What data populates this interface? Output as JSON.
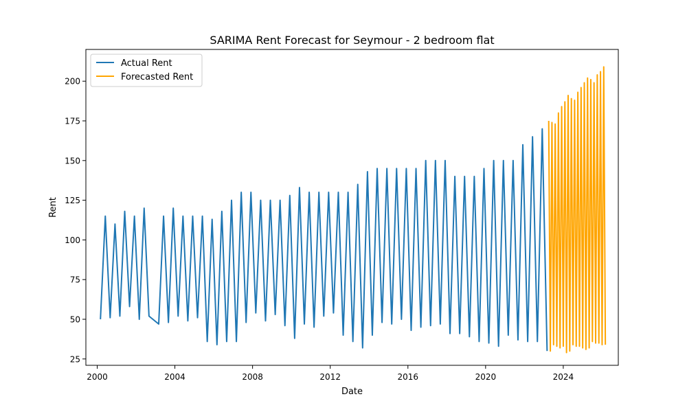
{
  "chart_data": {
    "type": "line",
    "title": "SARIMA Rent Forecast for Seymour - 2 bedroom flat",
    "xlabel": "Date",
    "ylabel": "Rent",
    "xlim": [
      "1999-06-01",
      "2026-11-01"
    ],
    "ylim": [
      21.0,
      220.0
    ],
    "x_ticks": [
      "2000",
      "2004",
      "2008",
      "2012",
      "2016",
      "2020",
      "2024"
    ],
    "y_ticks": [
      25,
      50,
      75,
      100,
      125,
      150,
      175,
      200
    ],
    "grid": false,
    "legend_position": "top-left",
    "series": [
      {
        "name": "Actual Rent",
        "color": "#1f77b4",
        "points": [
          [
            "2000-03-01",
            50
          ],
          [
            "2000-06-01",
            115
          ],
          [
            "2000-09-01",
            51
          ],
          [
            "2000-12-01",
            110
          ],
          [
            "2001-03-01",
            52
          ],
          [
            "2001-06-01",
            118
          ],
          [
            "2001-09-01",
            58
          ],
          [
            "2001-12-01",
            115
          ],
          [
            "2002-03-01",
            50
          ],
          [
            "2002-06-01",
            120
          ],
          [
            "2002-09-01",
            52
          ],
          [
            "2003-03-01",
            47
          ],
          [
            "2003-06-01",
            115
          ],
          [
            "2003-09-01",
            48
          ],
          [
            "2003-12-01",
            120
          ],
          [
            "2004-03-01",
            52
          ],
          [
            "2004-06-01",
            115
          ],
          [
            "2004-09-01",
            49
          ],
          [
            "2004-12-01",
            115
          ],
          [
            "2005-03-01",
            51
          ],
          [
            "2005-06-01",
            115
          ],
          [
            "2005-09-01",
            36
          ],
          [
            "2005-12-01",
            113
          ],
          [
            "2006-03-01",
            34
          ],
          [
            "2006-06-01",
            118
          ],
          [
            "2006-09-01",
            36
          ],
          [
            "2006-12-01",
            125
          ],
          [
            "2007-03-01",
            36
          ],
          [
            "2007-06-01",
            130
          ],
          [
            "2007-09-01",
            48
          ],
          [
            "2007-12-01",
            130
          ],
          [
            "2008-03-01",
            54
          ],
          [
            "2008-06-01",
            125
          ],
          [
            "2008-09-01",
            49
          ],
          [
            "2008-12-01",
            125
          ],
          [
            "2009-03-01",
            53
          ],
          [
            "2009-06-01",
            125
          ],
          [
            "2009-09-01",
            46
          ],
          [
            "2009-12-01",
            128
          ],
          [
            "2010-03-01",
            38
          ],
          [
            "2010-06-01",
            133
          ],
          [
            "2010-09-01",
            47
          ],
          [
            "2010-12-01",
            130
          ],
          [
            "2011-03-01",
            45
          ],
          [
            "2011-06-01",
            130
          ],
          [
            "2011-09-01",
            52
          ],
          [
            "2011-12-01",
            130
          ],
          [
            "2012-03-01",
            54
          ],
          [
            "2012-06-01",
            130
          ],
          [
            "2012-09-01",
            40
          ],
          [
            "2012-12-01",
            130
          ],
          [
            "2013-03-01",
            36
          ],
          [
            "2013-06-01",
            135
          ],
          [
            "2013-09-01",
            32
          ],
          [
            "2013-12-01",
            143
          ],
          [
            "2014-03-01",
            40
          ],
          [
            "2014-06-01",
            145
          ],
          [
            "2014-09-01",
            48
          ],
          [
            "2014-12-01",
            145
          ],
          [
            "2015-03-01",
            47
          ],
          [
            "2015-06-01",
            145
          ],
          [
            "2015-09-01",
            50
          ],
          [
            "2015-12-01",
            145
          ],
          [
            "2016-03-01",
            43
          ],
          [
            "2016-06-01",
            145
          ],
          [
            "2016-09-01",
            45
          ],
          [
            "2016-12-01",
            150
          ],
          [
            "2017-03-01",
            46
          ],
          [
            "2017-06-01",
            150
          ],
          [
            "2017-09-01",
            47
          ],
          [
            "2017-12-01",
            150
          ],
          [
            "2018-03-01",
            41
          ],
          [
            "2018-06-01",
            140
          ],
          [
            "2018-09-01",
            41
          ],
          [
            "2018-12-01",
            140
          ],
          [
            "2019-03-01",
            39
          ],
          [
            "2019-06-01",
            140
          ],
          [
            "2019-09-01",
            36
          ],
          [
            "2019-12-01",
            145
          ],
          [
            "2020-03-01",
            35
          ],
          [
            "2020-06-01",
            150
          ],
          [
            "2020-09-01",
            33
          ],
          [
            "2020-12-01",
            150
          ],
          [
            "2021-03-01",
            40
          ],
          [
            "2021-06-01",
            150
          ],
          [
            "2021-09-01",
            37
          ],
          [
            "2021-12-01",
            160
          ],
          [
            "2022-03-01",
            36
          ],
          [
            "2022-06-01",
            165
          ],
          [
            "2022-09-01",
            36
          ],
          [
            "2022-12-01",
            170
          ],
          [
            "2023-03-01",
            30
          ]
        ]
      },
      {
        "name": "Forecasted Rent",
        "color": "#ffa500",
        "points": [
          [
            "2023-04-01",
            175
          ],
          [
            "2023-05-01",
            30
          ],
          [
            "2023-06-01",
            174
          ],
          [
            "2023-07-01",
            34
          ],
          [
            "2023-08-01",
            173
          ],
          [
            "2023-09-01",
            33
          ],
          [
            "2023-10-01",
            180
          ],
          [
            "2023-11-01",
            32
          ],
          [
            "2023-12-01",
            184
          ],
          [
            "2024-01-01",
            33
          ],
          [
            "2024-02-01",
            187
          ],
          [
            "2024-03-01",
            29
          ],
          [
            "2024-04-01",
            191
          ],
          [
            "2024-05-01",
            30
          ],
          [
            "2024-06-01",
            189
          ],
          [
            "2024-07-01",
            34
          ],
          [
            "2024-08-01",
            188
          ],
          [
            "2024-09-01",
            33
          ],
          [
            "2024-10-01",
            193
          ],
          [
            "2024-11-01",
            33
          ],
          [
            "2024-12-01",
            196
          ],
          [
            "2025-01-01",
            32
          ],
          [
            "2025-02-01",
            199
          ],
          [
            "2025-03-01",
            31
          ],
          [
            "2025-04-01",
            202
          ],
          [
            "2025-05-01",
            32
          ],
          [
            "2025-06-01",
            201
          ],
          [
            "2025-07-01",
            36
          ],
          [
            "2025-08-01",
            199
          ],
          [
            "2025-09-01",
            35
          ],
          [
            "2025-10-01",
            204
          ],
          [
            "2025-11-01",
            35
          ],
          [
            "2025-12-01",
            206
          ],
          [
            "2026-01-01",
            34
          ],
          [
            "2026-02-01",
            209
          ],
          [
            "2026-03-01",
            34
          ]
        ]
      }
    ]
  }
}
